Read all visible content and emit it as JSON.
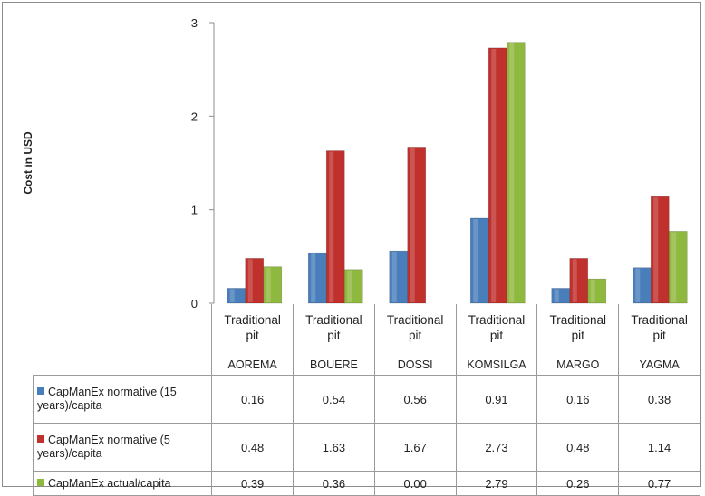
{
  "chart_data": {
    "type": "bar",
    "title": "",
    "ylabel": "Cost in USD",
    "xlabel": "",
    "ylim": [
      0,
      3
    ],
    "yticks": [
      0,
      1,
      2,
      3
    ],
    "categories": [
      {
        "line1": "Traditional",
        "line2": "pit",
        "line3": "AOREMA"
      },
      {
        "line1": "Traditional",
        "line2": "pit",
        "line3": "BOUERE"
      },
      {
        "line1": "Traditional",
        "line2": "pit",
        "line3": "DOSSI"
      },
      {
        "line1": "Traditional",
        "line2": "pit",
        "line3": "KOMSILGA"
      },
      {
        "line1": "Traditional",
        "line2": "pit",
        "line3": "MARGO"
      },
      {
        "line1": "Traditional",
        "line2": "pit",
        "line3": "YAGMA"
      }
    ],
    "series": [
      {
        "name": "CapManEx normative (15 years)/capita",
        "color": "#4a7ebb",
        "values": [
          0.16,
          0.54,
          0.56,
          0.91,
          0.16,
          0.38
        ],
        "labels": [
          "0.16",
          "0.54",
          "0.56",
          "0.91",
          "0.16",
          "0.38"
        ]
      },
      {
        "name": "CapManEx normative (5 years)/capita",
        "color": "#c0302d",
        "values": [
          0.48,
          1.63,
          1.67,
          2.73,
          0.48,
          1.14
        ],
        "labels": [
          "0.48",
          "1.63",
          "1.67",
          "2.73",
          "0.48",
          "1.14"
        ]
      },
      {
        "name": "CapManEx actual/capita",
        "color": "#8fb83e",
        "values": [
          0.39,
          0.36,
          0.0,
          2.79,
          0.26,
          0.77
        ],
        "labels": [
          "0.39",
          "0.36",
          "0.00",
          "2.79",
          "0.26",
          "0.77"
        ]
      }
    ],
    "grid": false,
    "legend": "data-table"
  }
}
